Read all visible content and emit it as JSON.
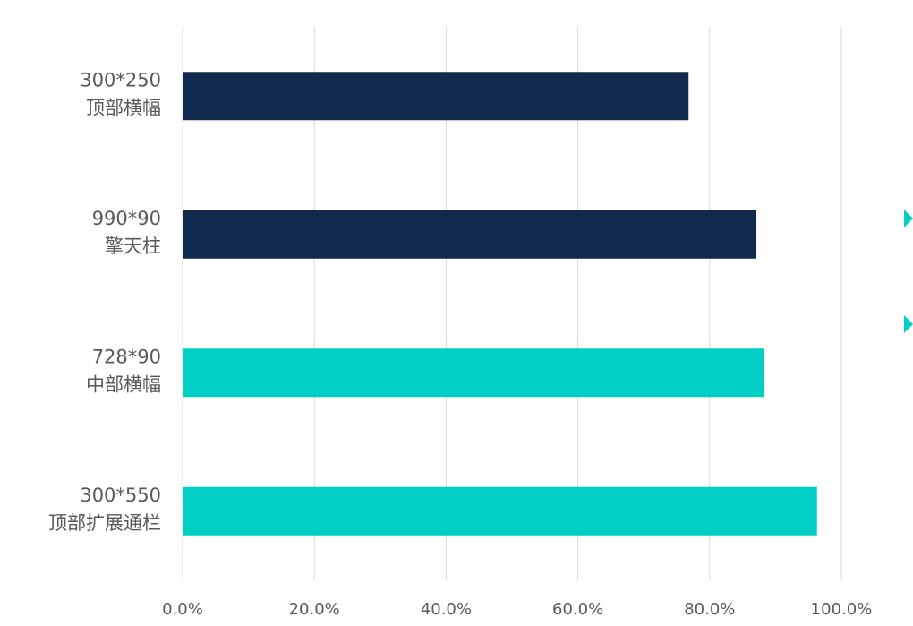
{
  "chart_data": {
    "type": "bar",
    "orientation": "horizontal",
    "categories": [
      {
        "code": "300*250",
        "name": "顶部横幅",
        "value": 76.8,
        "color": "#10294d"
      },
      {
        "code": "990*90",
        "name": "擎天柱",
        "value": 87.1,
        "color": "#10294d"
      },
      {
        "code": "728*90",
        "name": "中部横幅",
        "value": 88.2,
        "color": "#00cfc6"
      },
      {
        "code": "300*550",
        "name": "顶部扩展通栏",
        "value": 96.3,
        "color": "#00cfc6"
      }
    ],
    "xlim": [
      0,
      100
    ],
    "x_ticks": [
      "0.0%",
      "20.0%",
      "40.0%",
      "60.0%",
      "80.0%",
      "100.0%"
    ],
    "grid": true,
    "title": "",
    "xlabel": "",
    "ylabel": ""
  },
  "colors": {
    "dark_navy": "#10294d",
    "teal": "#00cfc6",
    "grid": "#d9d9d9",
    "text": "#595959"
  }
}
